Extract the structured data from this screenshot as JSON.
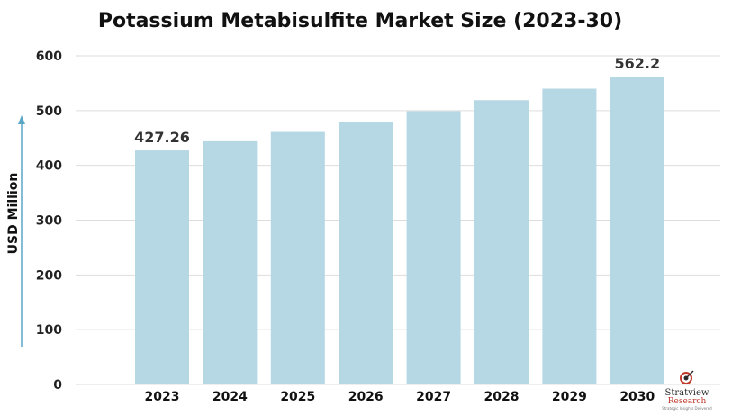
{
  "chart_data": {
    "type": "bar",
    "title": "Potassium Metabisulfite Market Size (2023-30)",
    "ylabel": "USD Million",
    "xlabel": "",
    "categories": [
      "2023",
      "2024",
      "2025",
      "2026",
      "2027",
      "2028",
      "2029",
      "2030"
    ],
    "values": [
      427.26,
      444,
      461,
      480,
      499,
      519,
      540,
      562.2
    ],
    "data_labels": {
      "2023": "427.26",
      "2030": "562.2"
    },
    "ylim": [
      0,
      600
    ],
    "yticks": [
      0,
      100,
      200,
      300,
      400,
      500,
      600
    ],
    "grid": true,
    "colors": {
      "bar": "#b6d7e4",
      "axis_arrow": "#5aa6c7",
      "grid": "#dddddd"
    }
  },
  "logo": {
    "name": "Stratview",
    "sub": "Research",
    "tagline": "Strategic Insights Delivered"
  }
}
